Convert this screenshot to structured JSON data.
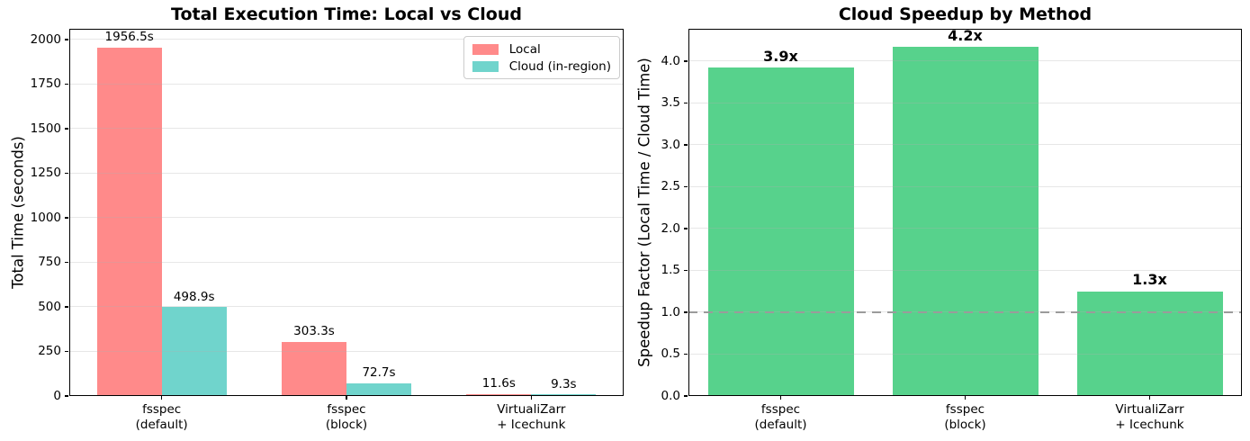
{
  "chart_data": [
    {
      "type": "bar",
      "title": "Total Execution Time: Local vs Cloud",
      "ylabel": "Total Time (seconds)",
      "categories": [
        [
          "fsspec",
          "(default)"
        ],
        [
          "fsspec",
          "(block)"
        ],
        [
          "VirtualiZarr",
          "+ Icechunk"
        ]
      ],
      "series": [
        {
          "name": "Local",
          "color": "#ff8a8a",
          "values": [
            1956.5,
            303.3,
            11.6
          ],
          "value_labels": [
            "1956.5s",
            "303.3s",
            "11.6s"
          ],
          "bold_labels": false
        },
        {
          "name": "Cloud (in-region)",
          "color": "#70d4cc",
          "values": [
            498.9,
            72.7,
            9.3
          ],
          "value_labels": [
            "498.9s",
            "72.7s",
            "9.3s"
          ],
          "bold_labels": false
        }
      ],
      "yticks": [
        {
          "v": 0,
          "label": "0"
        },
        {
          "v": 250,
          "label": "250"
        },
        {
          "v": 500,
          "label": "500"
        },
        {
          "v": 750,
          "label": "750"
        },
        {
          "v": 1000,
          "label": "1000"
        },
        {
          "v": 1250,
          "label": "1250"
        },
        {
          "v": 1500,
          "label": "1500"
        },
        {
          "v": 1750,
          "label": "1750"
        },
        {
          "v": 2000,
          "label": "2000"
        }
      ],
      "ylim": [
        0,
        2060
      ],
      "grid": true,
      "legend": true
    },
    {
      "type": "bar",
      "title": "Cloud Speedup by Method",
      "ylabel": "Speedup Factor (Local Time / Cloud Time)",
      "categories": [
        [
          "fsspec",
          "(default)"
        ],
        [
          "fsspec",
          "(block)"
        ],
        [
          "VirtualiZarr",
          "+ Icechunk"
        ]
      ],
      "series": [
        {
          "name": "Speedup",
          "color": "#57d28c",
          "values": [
            3.92,
            4.17,
            1.25
          ],
          "value_labels": [
            "3.9x",
            "4.2x",
            "1.3x"
          ],
          "bold_labels": true
        }
      ],
      "yticks": [
        {
          "v": 0,
          "label": "0.0"
        },
        {
          "v": 0.5,
          "label": "0.5"
        },
        {
          "v": 1,
          "label": "1.0"
        },
        {
          "v": 1.5,
          "label": "1.5"
        },
        {
          "v": 2,
          "label": "2.0"
        },
        {
          "v": 2.5,
          "label": "2.5"
        },
        {
          "v": 3,
          "label": "3.0"
        },
        {
          "v": 3.5,
          "label": "3.5"
        },
        {
          "v": 4,
          "label": "4.0"
        }
      ],
      "ylim": [
        0,
        4.385
      ],
      "grid": true,
      "legend": false,
      "refline": {
        "y": 1.0,
        "color": "#9b9b9b",
        "style": "dashed"
      }
    }
  ]
}
